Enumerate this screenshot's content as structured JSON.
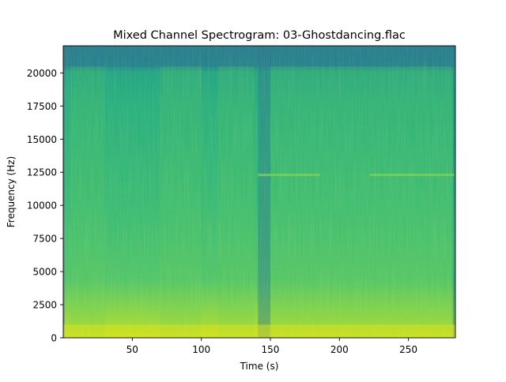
{
  "chart_data": {
    "type": "heatmap",
    "title": "Mixed Channel Spectrogram: 03-Ghostdancing.flac",
    "xlabel": "Time (s)",
    "ylabel": "Frequency (Hz)",
    "xlim": [
      0,
      284
    ],
    "ylim": [
      0,
      22050
    ],
    "x_ticks": [
      50,
      100,
      150,
      200,
      250
    ],
    "x_tick_labels": [
      "50",
      "100",
      "150",
      "200",
      "250"
    ],
    "y_ticks": [
      0,
      2500,
      5000,
      7500,
      10000,
      12500,
      15000,
      17500,
      20000
    ],
    "y_tick_labels": [
      "0",
      "2500",
      "5000",
      "7500",
      "10000",
      "12500",
      "15000",
      "17500",
      "20000"
    ],
    "colormap": "viridis",
    "grid": false,
    "spectral_features": {
      "upper_cutoff_hz": 20500,
      "quiet_time_ranges_s": [
        [
          0,
          1
        ],
        [
          141,
          150
        ],
        [
          282,
          284
        ]
      ],
      "brighter_time_ranges_s": [
        [
          5,
          30
        ],
        [
          70,
          100
        ],
        [
          112,
          138
        ],
        [
          150,
          186
        ],
        [
          186,
          226
        ],
        [
          226,
          282
        ]
      ],
      "tonal_line_hz": 12300,
      "tonal_line_time_ranges_s": [
        [
          141,
          186
        ],
        [
          222,
          283
        ]
      ],
      "peak_energy_band_hz": [
        0,
        1000
      ]
    }
  }
}
